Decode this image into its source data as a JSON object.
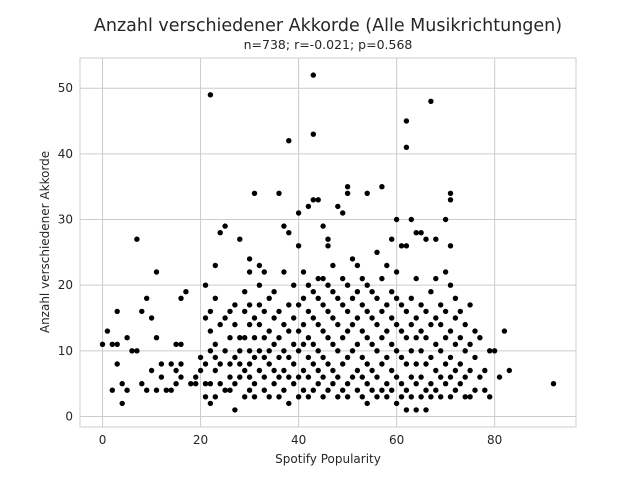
{
  "chart_data": {
    "type": "scatter",
    "title": "Anzahl verschiedener Akkorde (Alle Musikrichtungen)",
    "subtitle": "n=738; r=-0.021; p=0.568",
    "xlabel": "Spotify Popularity",
    "ylabel": "Anzahl verschiedener Akkorde",
    "xlim": [
      -4.6,
      96.6
    ],
    "ylim": [
      -1.6,
      54.6
    ],
    "xticks": [
      0,
      20,
      40,
      60,
      80
    ],
    "yticks": [
      0,
      10,
      20,
      30,
      40,
      50
    ],
    "grid": true,
    "marker_color": "#000000",
    "grid_color": "#cccccc",
    "points": [
      [
        0,
        11
      ],
      [
        1,
        13
      ],
      [
        2,
        4
      ],
      [
        2,
        11
      ],
      [
        3,
        8
      ],
      [
        3,
        11
      ],
      [
        3,
        16
      ],
      [
        4,
        2
      ],
      [
        4,
        5
      ],
      [
        5,
        4
      ],
      [
        5,
        12
      ],
      [
        6,
        10
      ],
      [
        7,
        10
      ],
      [
        7,
        27
      ],
      [
        8,
        5
      ],
      [
        8,
        16
      ],
      [
        9,
        4
      ],
      [
        9,
        18
      ],
      [
        10,
        7
      ],
      [
        10,
        15
      ],
      [
        11,
        4
      ],
      [
        11,
        12
      ],
      [
        11,
        22
      ],
      [
        12,
        6
      ],
      [
        12,
        8
      ],
      [
        13,
        4
      ],
      [
        14,
        4
      ],
      [
        14,
        8
      ],
      [
        15,
        5
      ],
      [
        15,
        7
      ],
      [
        15,
        11
      ],
      [
        16,
        6
      ],
      [
        16,
        8
      ],
      [
        16,
        11
      ],
      [
        16,
        18
      ],
      [
        17,
        19
      ],
      [
        18,
        5
      ],
      [
        19,
        5
      ],
      [
        19,
        6
      ],
      [
        20,
        7
      ],
      [
        20,
        9
      ],
      [
        21,
        3
      ],
      [
        21,
        5
      ],
      [
        21,
        8
      ],
      [
        21,
        15
      ],
      [
        21,
        20
      ],
      [
        22,
        2
      ],
      [
        22,
        49
      ],
      [
        22,
        5
      ],
      [
        22,
        10
      ],
      [
        22,
        13
      ],
      [
        22,
        16
      ],
      [
        23,
        3
      ],
      [
        23,
        7
      ],
      [
        23,
        9
      ],
      [
        23,
        11
      ],
      [
        23,
        18
      ],
      [
        23,
        23
      ],
      [
        24,
        5
      ],
      [
        24,
        8
      ],
      [
        24,
        14
      ],
      [
        24,
        28
      ],
      [
        25,
        4
      ],
      [
        25,
        10
      ],
      [
        25,
        15
      ],
      [
        25,
        29
      ],
      [
        26,
        4
      ],
      [
        26,
        6
      ],
      [
        26,
        8
      ],
      [
        26,
        12
      ],
      [
        26,
        16
      ],
      [
        27,
        1
      ],
      [
        27,
        5
      ],
      [
        27,
        9
      ],
      [
        27,
        14
      ],
      [
        27,
        17
      ],
      [
        28,
        6
      ],
      [
        28,
        8
      ],
      [
        28,
        10
      ],
      [
        28,
        12
      ],
      [
        28,
        27
      ],
      [
        29,
        3
      ],
      [
        29,
        7
      ],
      [
        29,
        12
      ],
      [
        29,
        16
      ],
      [
        29,
        19
      ],
      [
        30,
        4
      ],
      [
        30,
        6
      ],
      [
        30,
        8
      ],
      [
        30,
        10
      ],
      [
        30,
        14
      ],
      [
        30,
        17
      ],
      [
        30,
        22
      ],
      [
        30,
        24
      ],
      [
        31,
        3
      ],
      [
        31,
        5
      ],
      [
        31,
        9
      ],
      [
        31,
        12
      ],
      [
        31,
        15
      ],
      [
        31,
        34
      ],
      [
        32,
        7
      ],
      [
        32,
        10
      ],
      [
        32,
        14
      ],
      [
        32,
        17
      ],
      [
        32,
        20
      ],
      [
        32,
        23
      ],
      [
        33,
        4
      ],
      [
        33,
        6
      ],
      [
        33,
        9
      ],
      [
        33,
        12
      ],
      [
        33,
        16
      ],
      [
        33,
        22
      ],
      [
        34,
        3
      ],
      [
        34,
        8
      ],
      [
        34,
        10
      ],
      [
        34,
        13
      ],
      [
        34,
        18
      ],
      [
        35,
        5
      ],
      [
        35,
        7
      ],
      [
        35,
        11
      ],
      [
        35,
        15
      ],
      [
        35,
        19
      ],
      [
        36,
        3
      ],
      [
        36,
        6
      ],
      [
        36,
        9
      ],
      [
        36,
        12
      ],
      [
        36,
        16
      ],
      [
        36,
        34
      ],
      [
        37,
        4
      ],
      [
        37,
        7
      ],
      [
        37,
        10
      ],
      [
        37,
        14
      ],
      [
        37,
        22
      ],
      [
        37,
        29
      ],
      [
        38,
        2
      ],
      [
        38,
        6
      ],
      [
        38,
        9
      ],
      [
        38,
        13
      ],
      [
        38,
        17
      ],
      [
        38,
        28
      ],
      [
        38,
        42
      ],
      [
        39,
        5
      ],
      [
        39,
        8
      ],
      [
        39,
        11
      ],
      [
        39,
        15
      ],
      [
        39,
        20
      ],
      [
        40,
        3
      ],
      [
        40,
        6
      ],
      [
        40,
        10
      ],
      [
        40,
        13
      ],
      [
        40,
        17
      ],
      [
        40,
        26
      ],
      [
        40,
        31
      ],
      [
        41,
        4
      ],
      [
        41,
        7
      ],
      [
        41,
        11
      ],
      [
        41,
        14
      ],
      [
        41,
        18
      ],
      [
        41,
        22
      ],
      [
        42,
        3
      ],
      [
        42,
        6
      ],
      [
        42,
        9
      ],
      [
        42,
        12
      ],
      [
        42,
        16
      ],
      [
        42,
        20
      ],
      [
        42,
        32
      ],
      [
        43,
        4
      ],
      [
        43,
        8
      ],
      [
        43,
        11
      ],
      [
        43,
        15
      ],
      [
        43,
        19
      ],
      [
        43,
        33
      ],
      [
        43,
        43
      ],
      [
        43,
        52
      ],
      [
        44,
        5
      ],
      [
        44,
        7
      ],
      [
        44,
        10
      ],
      [
        44,
        14
      ],
      [
        44,
        18
      ],
      [
        44,
        21
      ],
      [
        44,
        33
      ],
      [
        45,
        3
      ],
      [
        45,
        6
      ],
      [
        45,
        9
      ],
      [
        45,
        13
      ],
      [
        45,
        17
      ],
      [
        45,
        21
      ],
      [
        45,
        29
      ],
      [
        46,
        4
      ],
      [
        46,
        8
      ],
      [
        46,
        12
      ],
      [
        46,
        16
      ],
      [
        46,
        20
      ],
      [
        46,
        26
      ],
      [
        46,
        27
      ],
      [
        47,
        5
      ],
      [
        47,
        7
      ],
      [
        47,
        11
      ],
      [
        47,
        15
      ],
      [
        47,
        19
      ],
      [
        47,
        23
      ],
      [
        48,
        3
      ],
      [
        48,
        6
      ],
      [
        48,
        10
      ],
      [
        48,
        14
      ],
      [
        48,
        18
      ],
      [
        48,
        32
      ],
      [
        49,
        4
      ],
      [
        49,
        8
      ],
      [
        49,
        12
      ],
      [
        49,
        17
      ],
      [
        49,
        21
      ],
      [
        49,
        31
      ],
      [
        50,
        3
      ],
      [
        50,
        5
      ],
      [
        50,
        9
      ],
      [
        50,
        13
      ],
      [
        50,
        16
      ],
      [
        50,
        20
      ],
      [
        50,
        34
      ],
      [
        50,
        35
      ],
      [
        51,
        6
      ],
      [
        51,
        10
      ],
      [
        51,
        14
      ],
      [
        51,
        18
      ],
      [
        51,
        24
      ],
      [
        52,
        4
      ],
      [
        52,
        7
      ],
      [
        52,
        11
      ],
      [
        52,
        15
      ],
      [
        52,
        19
      ],
      [
        52,
        23
      ],
      [
        53,
        3
      ],
      [
        53,
        6
      ],
      [
        53,
        9
      ],
      [
        53,
        13
      ],
      [
        53,
        17
      ],
      [
        53,
        21
      ],
      [
        54,
        2
      ],
      [
        54,
        5
      ],
      [
        54,
        8
      ],
      [
        54,
        12
      ],
      [
        54,
        16
      ],
      [
        54,
        20
      ],
      [
        54,
        34
      ],
      [
        55,
        4
      ],
      [
        55,
        7
      ],
      [
        55,
        11
      ],
      [
        55,
        15
      ],
      [
        55,
        19
      ],
      [
        56,
        3
      ],
      [
        56,
        6
      ],
      [
        56,
        10
      ],
      [
        56,
        14
      ],
      [
        56,
        18
      ],
      [
        56,
        25
      ],
      [
        57,
        4
      ],
      [
        57,
        8
      ],
      [
        57,
        12
      ],
      [
        57,
        16
      ],
      [
        57,
        21
      ],
      [
        57,
        35
      ],
      [
        58,
        3
      ],
      [
        58,
        5
      ],
      [
        58,
        9
      ],
      [
        58,
        13
      ],
      [
        58,
        17
      ],
      [
        58,
        23
      ],
      [
        59,
        4
      ],
      [
        59,
        7
      ],
      [
        59,
        11
      ],
      [
        59,
        15
      ],
      [
        59,
        19
      ],
      [
        59,
        27
      ],
      [
        60,
        2
      ],
      [
        60,
        6
      ],
      [
        60,
        10
      ],
      [
        60,
        14
      ],
      [
        60,
        18
      ],
      [
        60,
        22
      ],
      [
        60,
        30
      ],
      [
        61,
        3
      ],
      [
        61,
        5
      ],
      [
        61,
        9
      ],
      [
        61,
        13
      ],
      [
        61,
        17
      ],
      [
        61,
        26
      ],
      [
        62,
        1
      ],
      [
        62,
        4
      ],
      [
        62,
        8
      ],
      [
        62,
        12
      ],
      [
        62,
        16
      ],
      [
        62,
        26
      ],
      [
        62,
        41
      ],
      [
        62,
        45
      ],
      [
        63,
        3
      ],
      [
        63,
        6
      ],
      [
        63,
        10
      ],
      [
        63,
        14
      ],
      [
        63,
        18
      ],
      [
        63,
        30
      ],
      [
        64,
        1
      ],
      [
        64,
        5
      ],
      [
        64,
        8
      ],
      [
        64,
        12
      ],
      [
        64,
        15
      ],
      [
        64,
        21
      ],
      [
        64,
        28
      ],
      [
        65,
        3
      ],
      [
        65,
        6
      ],
      [
        65,
        10
      ],
      [
        65,
        13
      ],
      [
        65,
        17
      ],
      [
        65,
        28
      ],
      [
        66,
        1
      ],
      [
        66,
        4
      ],
      [
        66,
        8
      ],
      [
        66,
        12
      ],
      [
        66,
        16
      ],
      [
        66,
        27
      ],
      [
        67,
        3
      ],
      [
        67,
        5
      ],
      [
        67,
        9
      ],
      [
        67,
        14
      ],
      [
        67,
        19
      ],
      [
        67,
        48
      ],
      [
        68,
        4
      ],
      [
        68,
        7
      ],
      [
        68,
        11
      ],
      [
        68,
        15
      ],
      [
        68,
        21
      ],
      [
        68,
        27
      ],
      [
        69,
        3
      ],
      [
        69,
        6
      ],
      [
        69,
        10
      ],
      [
        69,
        14
      ],
      [
        69,
        17
      ],
      [
        70,
        5
      ],
      [
        70,
        8
      ],
      [
        70,
        12
      ],
      [
        70,
        16
      ],
      [
        70,
        22
      ],
      [
        70,
        30
      ],
      [
        71,
        3
      ],
      [
        71,
        6
      ],
      [
        71,
        9
      ],
      [
        71,
        13
      ],
      [
        71,
        20
      ],
      [
        71,
        26
      ],
      [
        71,
        33
      ],
      [
        71,
        34
      ],
      [
        72,
        4
      ],
      [
        72,
        7
      ],
      [
        72,
        11
      ],
      [
        72,
        15
      ],
      [
        72,
        18
      ],
      [
        73,
        5
      ],
      [
        73,
        8
      ],
      [
        73,
        12
      ],
      [
        73,
        16
      ],
      [
        74,
        3
      ],
      [
        74,
        6
      ],
      [
        74,
        10
      ],
      [
        74,
        14
      ],
      [
        75,
        3
      ],
      [
        75,
        7
      ],
      [
        75,
        11
      ],
      [
        75,
        17
      ],
      [
        76,
        4
      ],
      [
        76,
        9
      ],
      [
        76,
        13
      ],
      [
        77,
        6
      ],
      [
        77,
        12
      ],
      [
        78,
        4
      ],
      [
        78,
        7
      ],
      [
        79,
        3
      ],
      [
        79,
        10
      ],
      [
        80,
        10
      ],
      [
        81,
        6
      ],
      [
        82,
        13
      ],
      [
        83,
        7
      ],
      [
        92,
        5
      ]
    ]
  }
}
